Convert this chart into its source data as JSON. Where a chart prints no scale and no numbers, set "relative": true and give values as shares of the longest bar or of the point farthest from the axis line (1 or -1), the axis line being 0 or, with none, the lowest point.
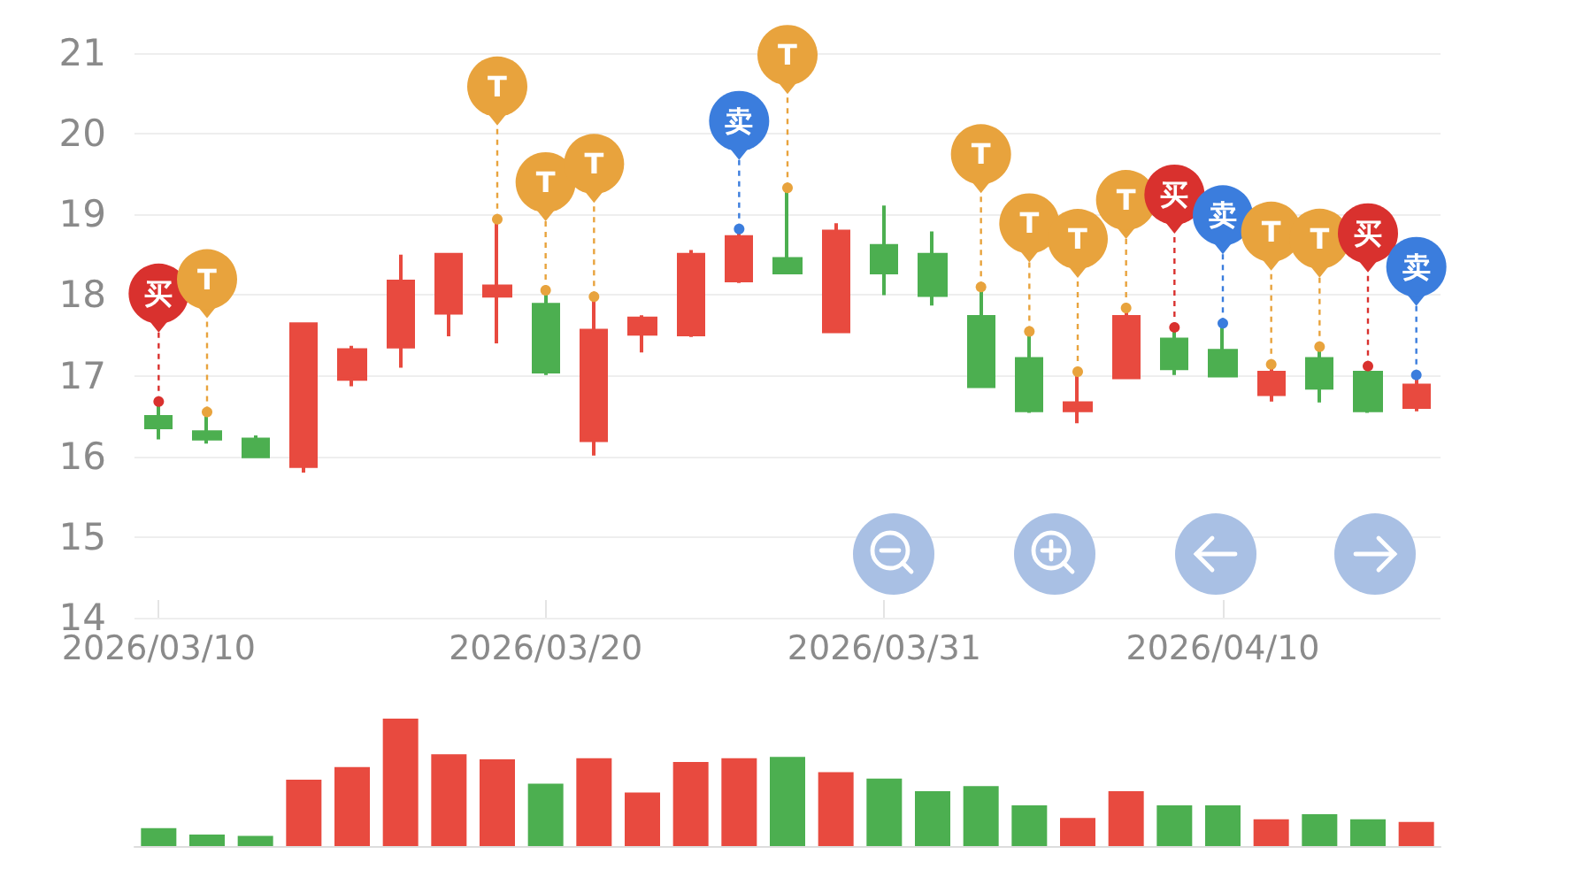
{
  "chart_data": [
    {
      "type": "candlestick",
      "categories": [
        "2026/03/10",
        null,
        null,
        null,
        null,
        null,
        null,
        null,
        "2026/03/20",
        null,
        null,
        null,
        null,
        null,
        null,
        "2026/03/31",
        null,
        null,
        null,
        null,
        null,
        null,
        "2026/04/10",
        null,
        null,
        null,
        null
      ],
      "ohlc": [
        [
          16.49,
          16.68,
          16.21,
          16.36
        ],
        [
          16.3,
          16.55,
          16.16,
          16.22
        ],
        [
          16.21,
          16.26,
          16.0,
          16.0
        ],
        [
          15.88,
          17.64,
          15.8,
          17.64
        ],
        [
          16.96,
          17.37,
          16.87,
          17.32
        ],
        [
          17.36,
          18.5,
          17.1,
          18.17
        ],
        [
          17.78,
          18.5,
          17.49,
          18.5
        ],
        [
          17.99,
          18.94,
          17.4,
          18.11
        ],
        [
          17.88,
          18.06,
          17.01,
          17.05
        ],
        [
          16.2,
          17.98,
          16.01,
          17.56
        ],
        [
          17.52,
          17.75,
          17.29,
          17.71
        ],
        [
          17.51,
          18.56,
          17.48,
          18.5
        ],
        [
          18.18,
          18.82,
          18.15,
          18.72
        ],
        [
          18.45,
          19.33,
          18.28,
          18.28
        ],
        [
          17.55,
          18.89,
          17.55,
          18.79
        ],
        [
          18.61,
          19.11,
          18.0,
          18.28
        ],
        [
          18.5,
          18.79,
          17.87,
          18.0
        ],
        [
          17.73,
          18.1,
          16.87,
          16.87
        ],
        [
          17.21,
          17.55,
          16.54,
          16.57
        ],
        [
          16.57,
          17.05,
          16.41,
          16.66
        ],
        [
          16.98,
          17.84,
          16.98,
          17.73
        ],
        [
          17.45,
          17.6,
          17.01,
          17.09
        ],
        [
          17.31,
          17.65,
          17.0,
          17.0
        ],
        [
          16.77,
          17.14,
          16.68,
          17.04
        ],
        [
          17.21,
          17.36,
          16.67,
          16.85
        ],
        [
          17.04,
          17.12,
          16.54,
          16.57
        ],
        [
          16.61,
          17.01,
          16.56,
          16.88
        ]
      ],
      "colors": [
        "#4caf50",
        "#4caf50",
        "#4caf50",
        "#e84a3f",
        "#e84a3f",
        "#e84a3f",
        "#e84a3f",
        "#e84a3f",
        "#4caf50",
        "#e84a3f",
        "#e84a3f",
        "#e84a3f",
        "#e84a3f",
        "#4caf50",
        "#e84a3f",
        "#4caf50",
        "#4caf50",
        "#4caf50",
        "#4caf50",
        "#e84a3f",
        "#e84a3f",
        "#4caf50",
        "#4caf50",
        "#e84a3f",
        "#4caf50",
        "#4caf50",
        "#e84a3f"
      ],
      "series": [
        {
          "type": "scatter",
          "values": [
            16.68,
            16.55,
            null,
            null,
            null,
            null,
            null,
            18.94,
            18.06,
            17.98,
            null,
            null,
            18.82,
            19.33,
            null,
            null,
            null,
            18.1,
            17.55,
            17.05,
            17.84,
            17.6,
            17.65,
            17.14,
            17.36,
            17.12,
            17.01
          ],
          "value_labels": [
            "买",
            "T",
            null,
            null,
            null,
            null,
            null,
            "T",
            "T",
            "T",
            null,
            null,
            "卖",
            "T",
            null,
            null,
            null,
            "T",
            "T",
            "T",
            "T",
            "买",
            "卖",
            "T",
            "T",
            "买",
            "卖"
          ],
          "colors": [
            "#d9312e",
            "#e8a33d",
            null,
            null,
            null,
            null,
            null,
            "#e8a33d",
            "#e8a33d",
            "#e8a33d",
            null,
            null,
            "#3b7ddd",
            "#e8a33d",
            null,
            null,
            null,
            "#e8a33d",
            "#e8a33d",
            "#e8a33d",
            "#e8a33d",
            "#d9312e",
            "#3b7ddd",
            "#e8a33d",
            "#e8a33d",
            "#d9312e",
            "#3b7ddd"
          ]
        }
      ],
      "ylim": [
        14,
        21
      ],
      "yticks": [
        14,
        15,
        16,
        17,
        18,
        19,
        20,
        21
      ],
      "grid": "y"
    },
    {
      "type": "bar",
      "relative": true,
      "categories": [
        null,
        null,
        null,
        null,
        null,
        null,
        null,
        null,
        null,
        null,
        null,
        null,
        null,
        null,
        null,
        null,
        null,
        null,
        null,
        null,
        null,
        null,
        null,
        null,
        null,
        null,
        null
      ],
      "values": [
        0.14,
        0.09,
        0.08,
        0.52,
        0.62,
        1,
        0.72,
        0.68,
        0.49,
        0.69,
        0.42,
        0.66,
        0.69,
        0.7,
        0.58,
        0.53,
        0.43,
        0.47,
        0.32,
        0.22,
        0.43,
        0.32,
        0.32,
        0.21,
        0.25,
        0.21,
        0.19
      ],
      "colors": [
        "#4caf50",
        "#4caf50",
        "#4caf50",
        "#e84a3f",
        "#e84a3f",
        "#e84a3f",
        "#e84a3f",
        "#e84a3f",
        "#4caf50",
        "#e84a3f",
        "#e84a3f",
        "#e84a3f",
        "#e84a3f",
        "#4caf50",
        "#e84a3f",
        "#4caf50",
        "#4caf50",
        "#4caf50",
        "#4caf50",
        "#e84a3f",
        "#e84a3f",
        "#4caf50",
        "#4caf50",
        "#e84a3f",
        "#4caf50",
        "#4caf50",
        "#e84a3f"
      ]
    }
  ]
}
